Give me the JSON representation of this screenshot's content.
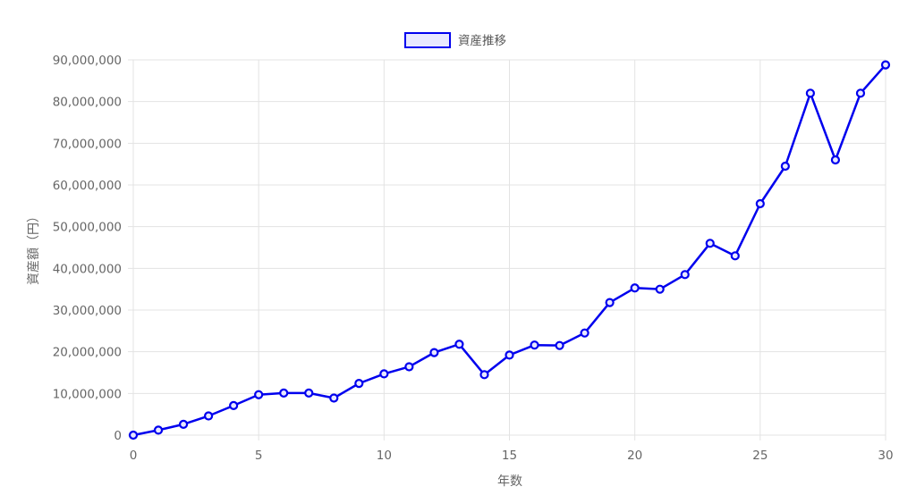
{
  "chart_data": {
    "type": "line",
    "title": "",
    "xlabel": "年数",
    "ylabel": "資産額（円）",
    "xlim": [
      0,
      30
    ],
    "ylim": [
      0,
      90000000
    ],
    "x_ticks": [
      0,
      5,
      10,
      15,
      20,
      25,
      30
    ],
    "y_ticks": [
      0,
      10000000,
      20000000,
      30000000,
      40000000,
      50000000,
      60000000,
      70000000,
      80000000,
      90000000
    ],
    "y_tick_labels": [
      "0",
      "10,000,000",
      "20,000,000",
      "30,000,000",
      "40,000,000",
      "50,000,000",
      "60,000,000",
      "70,000,000",
      "80,000,000",
      "90,000,000"
    ],
    "grid": true,
    "legend_position": "top-center",
    "x": [
      0,
      1,
      2,
      3,
      4,
      5,
      6,
      7,
      8,
      9,
      10,
      11,
      12,
      13,
      14,
      15,
      16,
      17,
      18,
      19,
      20,
      21,
      22,
      23,
      24,
      25,
      26,
      27,
      28,
      29,
      30
    ],
    "series": [
      {
        "name": "資産推移",
        "color": "#0000ee",
        "fill": "#e8e8ff",
        "values": [
          0,
          1200000,
          2600000,
          4600000,
          7100000,
          9700000,
          10100000,
          10100000,
          8900000,
          12400000,
          14700000,
          16400000,
          19800000,
          21800000,
          14500000,
          19200000,
          21600000,
          21500000,
          24500000,
          31800000,
          35300000,
          35000000,
          38500000,
          46000000,
          43000000,
          55500000,
          64500000,
          82000000,
          66000000,
          82000000,
          88800000
        ]
      }
    ]
  }
}
